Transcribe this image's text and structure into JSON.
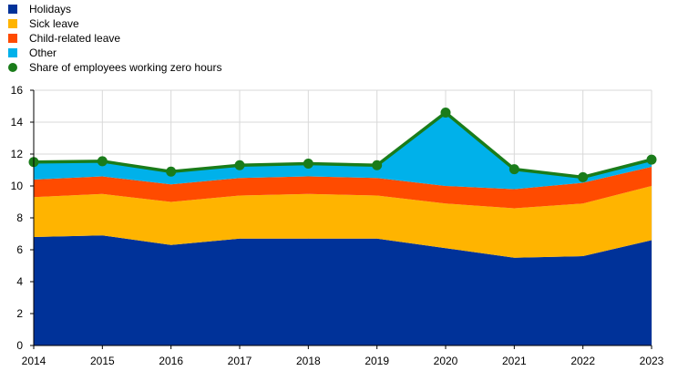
{
  "chart_data": {
    "type": "area",
    "title": "",
    "xlabel": "",
    "ylabel": "",
    "x": [
      2014,
      2015,
      2016,
      2017,
      2018,
      2019,
      2020,
      2021,
      2022,
      2023
    ],
    "ylim": [
      0,
      16
    ],
    "yticks": [
      0,
      2,
      4,
      6,
      8,
      10,
      12,
      14,
      16
    ],
    "grid": true,
    "stacked": true,
    "legend_position": "top-left",
    "series": [
      {
        "name": "Holidays",
        "kind": "area",
        "color": "#003299",
        "values": [
          6.8,
          6.9,
          6.3,
          6.7,
          6.7,
          6.7,
          6.1,
          5.5,
          5.6,
          6.6
        ]
      },
      {
        "name": "Sick leave",
        "kind": "area",
        "color": "#FFB400",
        "values": [
          2.5,
          2.6,
          2.7,
          2.7,
          2.8,
          2.7,
          2.8,
          3.1,
          3.3,
          3.4
        ]
      },
      {
        "name": "Child-related leave",
        "kind": "area",
        "color": "#FF4B00",
        "values": [
          1.1,
          1.1,
          1.1,
          1.1,
          1.1,
          1.1,
          1.1,
          1.2,
          1.3,
          1.2
        ]
      },
      {
        "name": "Other",
        "kind": "area",
        "color": "#00B1EA",
        "values": [
          1.1,
          0.9,
          0.8,
          0.8,
          0.8,
          0.8,
          4.6,
          1.2,
          0.3,
          0.4
        ]
      },
      {
        "name": "Share of employees working zero hours",
        "kind": "line-markers",
        "color": "#1A7C1A",
        "values": [
          11.5,
          11.55,
          10.9,
          11.3,
          11.4,
          11.3,
          14.6,
          11.05,
          10.55,
          11.65
        ]
      }
    ]
  }
}
